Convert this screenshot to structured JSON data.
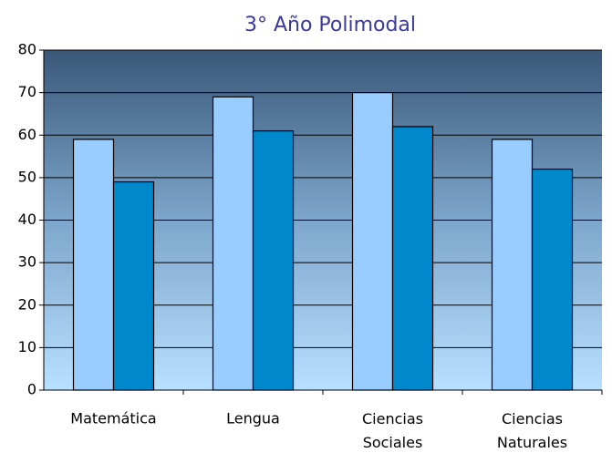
{
  "chart_data": {
    "type": "bar",
    "title": "3° Año Polimodal",
    "categories": [
      "Matemática",
      "Lengua",
      "Ciencias Sociales",
      "Ciencias Naturales"
    ],
    "series": [
      {
        "color": "#99ccff",
        "values": [
          59,
          69,
          70,
          59
        ]
      },
      {
        "color": "#0088cc",
        "values": [
          49,
          61,
          62,
          52
        ]
      }
    ],
    "ylim": [
      0,
      80
    ],
    "yticks": [
      0,
      10,
      20,
      30,
      40,
      50,
      60,
      70,
      80
    ],
    "grid": true
  }
}
